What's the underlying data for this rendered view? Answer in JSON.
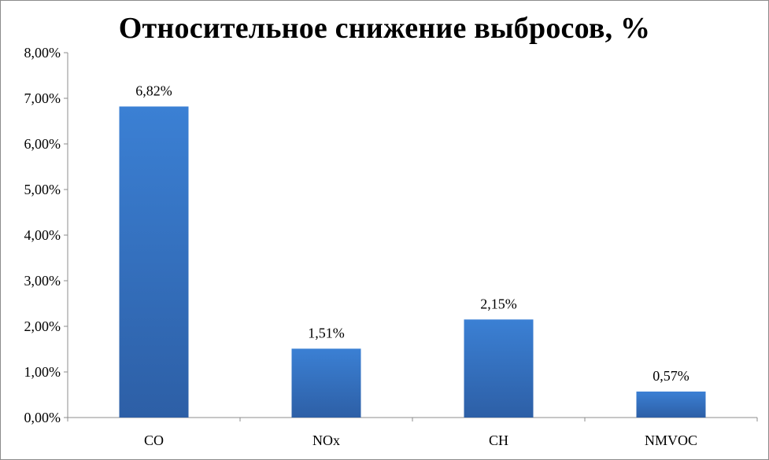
{
  "chart_data": {
    "type": "bar",
    "title": "Относительное снижение выбросов, %",
    "categories": [
      "CO",
      "NOx",
      "CH",
      "NMVOC"
    ],
    "values": [
      6.82,
      1.51,
      2.15,
      0.57
    ],
    "data_labels": [
      "6,82%",
      "1,51%",
      "2,15%",
      "0,57%"
    ],
    "y_ticks": [
      "0,00%",
      "1,00%",
      "2,00%",
      "3,00%",
      "4,00%",
      "5,00%",
      "6,00%",
      "7,00%",
      "8,00%"
    ],
    "ylim": [
      0,
      8
    ],
    "grid": false,
    "legend": "none",
    "bar_color_top": "#3b80d4",
    "bar_color_bottom": "#2d5fa6"
  }
}
